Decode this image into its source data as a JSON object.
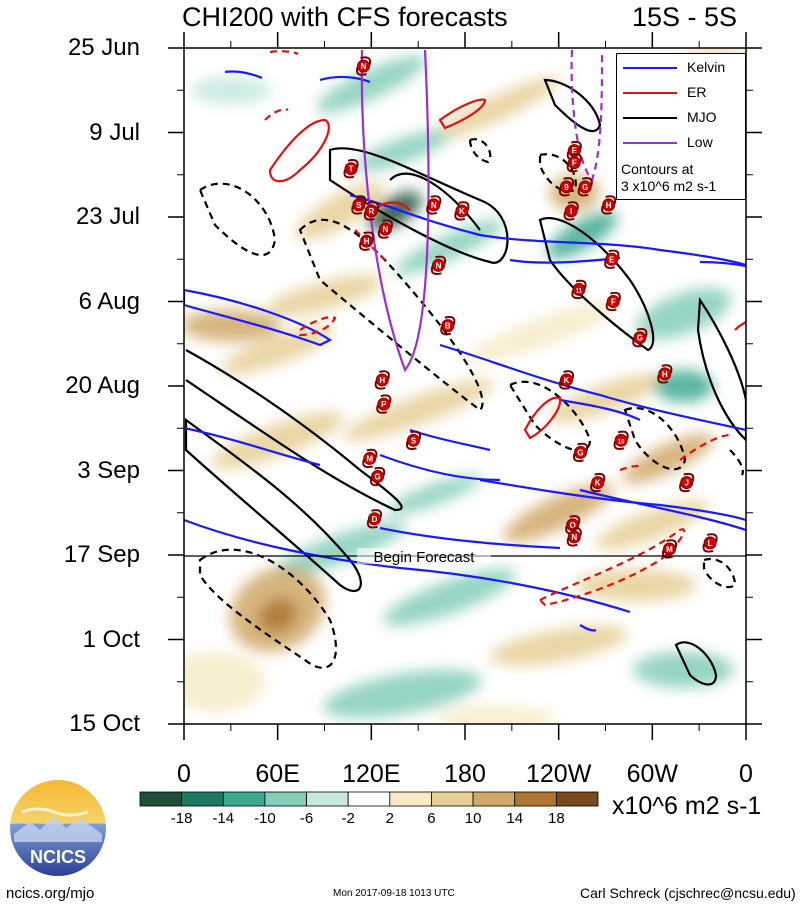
{
  "chart_data": {
    "type": "heatmap",
    "title": "CHI200 with CFS forecasts",
    "title_right": "15S - 5S",
    "x_axis": {
      "labels": [
        "0",
        "60E",
        "120E",
        "180",
        "120W",
        "60W",
        "0"
      ],
      "range_deg": [
        0,
        360
      ]
    },
    "y_axis": {
      "labels": [
        "25 Jun",
        "9 Jul",
        "23 Jul",
        "6 Aug",
        "20 Aug",
        "3 Sep",
        "17 Sep",
        "1 Oct",
        "15 Oct"
      ],
      "orientation": "time increases downward"
    },
    "colorbar": {
      "ticks": [
        "-18",
        "-14",
        "-10",
        "-6",
        "-2",
        "2",
        "6",
        "10",
        "14",
        "18"
      ],
      "units": "x10^6 m2 s-1",
      "colors": [
        "#1e4f3a",
        "#1f7a62",
        "#3da98f",
        "#84cdb8",
        "#c6e8df",
        "#ffffff",
        "#f6ebc6",
        "#e6cf95",
        "#d0a869",
        "#ad7633",
        "#7a4a1c"
      ]
    },
    "legend": {
      "items": [
        {
          "label": "Kelvin",
          "color": "#1a1aff"
        },
        {
          "label": "ER",
          "color": "#e01010"
        },
        {
          "label": "MJO",
          "color": "#000000"
        },
        {
          "label": "Low",
          "color": "#9932cc"
        }
      ],
      "note_line1": "Contours at",
      "note_line2": "3 x10^6 m2 s-1",
      "position": "top-right"
    },
    "forecast_marker": {
      "label": "Begin Forecast",
      "date": "17 Sep"
    },
    "storms": [
      {
        "letter": "N",
        "lon": 115,
        "date": "28 Jun"
      },
      {
        "letter": "T",
        "lon": 107,
        "date": "15 Jul"
      },
      {
        "letter": "S",
        "lon": 112,
        "date": "21 Jul"
      },
      {
        "letter": "R",
        "lon": 120,
        "date": "22 Jul"
      },
      {
        "letter": "N",
        "lon": 160,
        "date": "21 Jul"
      },
      {
        "letter": "K",
        "lon": 178,
        "date": "22 Jul"
      },
      {
        "letter": "N",
        "lon": 129,
        "date": "25 Jul"
      },
      {
        "letter": "H",
        "lon": 117,
        "date": "27 Jul"
      },
      {
        "letter": "N",
        "lon": 163,
        "date": "31 Jul"
      },
      {
        "letter": "B",
        "lon": 169,
        "date": "10 Aug"
      },
      {
        "letter": "H",
        "lon": 127,
        "date": "19 Aug"
      },
      {
        "letter": "P",
        "lon": 128,
        "date": "23 Aug"
      },
      {
        "letter": "S",
        "lon": 147,
        "date": "29 Aug"
      },
      {
        "letter": "M",
        "lon": 119,
        "date": "1 Sep"
      },
      {
        "letter": "G",
        "lon": 124,
        "date": "4 Sep"
      },
      {
        "letter": "D",
        "lon": 122,
        "date": "11 Sep"
      },
      {
        "letter": "E",
        "lon": 250,
        "date": "12 Jul"
      },
      {
        "letter": "F",
        "lon": 250,
        "date": "14 Jul"
      },
      {
        "letter": "G",
        "lon": 257,
        "date": "18 Jul"
      },
      {
        "letter": "9",
        "lon": 245,
        "date": "18 Jul"
      },
      {
        "letter": "H",
        "lon": 272,
        "date": "21 Jul"
      },
      {
        "letter": "I",
        "lon": 248,
        "date": "22 Jul"
      },
      {
        "letter": "E",
        "lon": 274,
        "date": "30 Jul"
      },
      {
        "letter": "11",
        "lon": 253,
        "date": "4 Aug"
      },
      {
        "letter": "F",
        "lon": 275,
        "date": "6 Aug"
      },
      {
        "letter": "G",
        "lon": 292,
        "date": "12 Aug"
      },
      {
        "letter": "H",
        "lon": 308,
        "date": "18 Aug"
      },
      {
        "letter": "K",
        "lon": 245,
        "date": "19 Aug"
      },
      {
        "letter": "10",
        "lon": 280,
        "date": "29 Aug"
      },
      {
        "letter": "G",
        "lon": 254,
        "date": "31 Aug"
      },
      {
        "letter": "K",
        "lon": 265,
        "date": "5 Sep"
      },
      {
        "letter": "J",
        "lon": 322,
        "date": "5 Sep"
      },
      {
        "letter": "O",
        "lon": 249,
        "date": "12 Sep"
      },
      {
        "letter": "N",
        "lon": 250,
        "date": "14 Sep"
      },
      {
        "letter": "M",
        "lon": 311,
        "date": "16 Sep"
      },
      {
        "letter": "L",
        "lon": 337,
        "date": "15 Sep"
      }
    ]
  },
  "branding": {
    "logo_text": "NCICS"
  },
  "footer": {
    "left": "ncics.org/mjo",
    "middle": "Mon 2017-09-18 1013 UTC",
    "right": "Carl Schreck (cjschrec@ncsu.edu)"
  }
}
